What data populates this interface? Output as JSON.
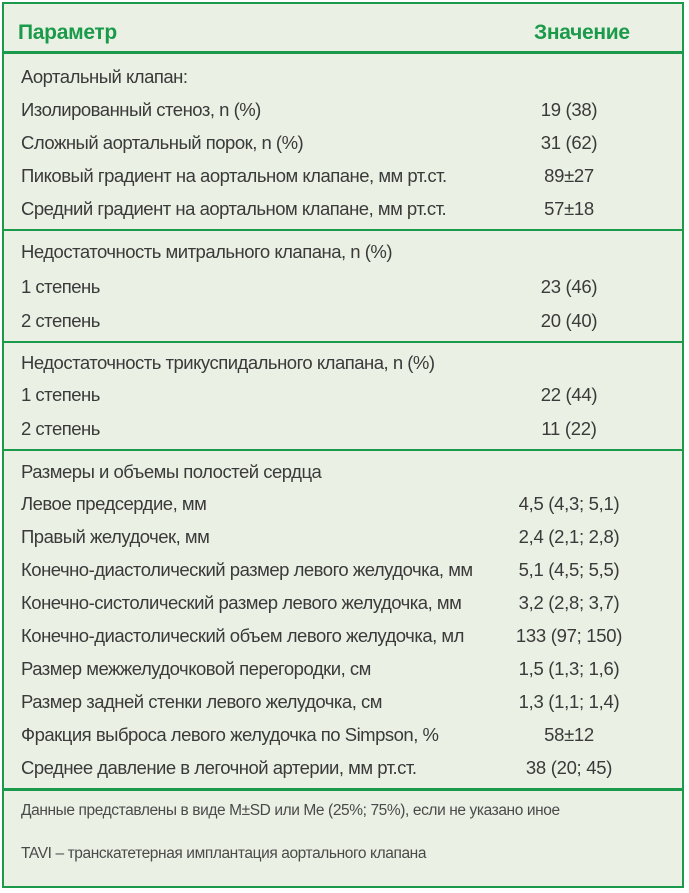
{
  "table": {
    "headers": {
      "param": "Параметр",
      "value": "Значение"
    },
    "sections": [
      {
        "rows": [
          {
            "label": "Аортальный клапан:",
            "value": ""
          },
          {
            "label": "Изолированный стеноз, n (%)",
            "value": "19 (38)"
          },
          {
            "label": "Сложный аортальный порок, n (%)",
            "value": "31 (62)"
          },
          {
            "label": "Пиковый градиент на аортальном клапане, мм рт.ст.",
            "value": "89±27"
          },
          {
            "label": "Средний градиент на аортальном клапане, мм рт.ст.",
            "value": "57±18"
          }
        ]
      },
      {
        "rows": [
          {
            "label": "Недостаточность митрального клапана, n (%)",
            "value": ""
          },
          {
            "label": "1 степень",
            "value": "23 (46)"
          },
          {
            "label": "2 степень",
            "value": "20 (40)"
          }
        ]
      },
      {
        "rows": [
          {
            "label": "Недостаточность трикуспидального клапана, n (%)",
            "value": ""
          },
          {
            "label": "1 степень",
            "value": "22 (44)"
          },
          {
            "label": "2 степень",
            "value": "11 (22)"
          }
        ]
      },
      {
        "rows": [
          {
            "label": "Размеры и объемы полостей сердца",
            "value": ""
          },
          {
            "label": "Левое предсердие, мм",
            "value": "4,5 (4,3; 5,1)"
          },
          {
            "label": "Правый желудочек, мм",
            "value": "2,4 (2,1; 2,8)"
          },
          {
            "label": "Конечно-диастолический размер левого желудочка, мм",
            "value": "5,1 (4,5; 5,5)"
          },
          {
            "label": "Конечно-систолический размер левого желудочка, мм",
            "value": "3,2 (2,8; 3,7)"
          },
          {
            "label": "Конечно-диастолический объем левого желудочка, мл",
            "value": "133 (97; 150)"
          },
          {
            "label": "Размер межжелудочковой перегородки, см",
            "value": "1,5 (1,3; 1,6)"
          },
          {
            "label": "Размер задней стенки левого желудочка, см",
            "value": "1,3 (1,1; 1,4)"
          },
          {
            "label": "Фракция выброса левого желудочка по Simpson, %",
            "value": "58±12"
          },
          {
            "label": "Среднее давление в легочной артерии, мм рт.ст.",
            "value": "38 (20; 45)"
          }
        ]
      }
    ]
  },
  "notes": {
    "data_format": "Данные представлены в виде M±SD или Me (25%; 75%), если не указано иное",
    "tavi": "TAVI – транскатетерная имплантация аортального клапана"
  },
  "colors": {
    "accent": "#1a9a4a",
    "background": "#eaf1e4",
    "text": "#3a3a3a"
  }
}
